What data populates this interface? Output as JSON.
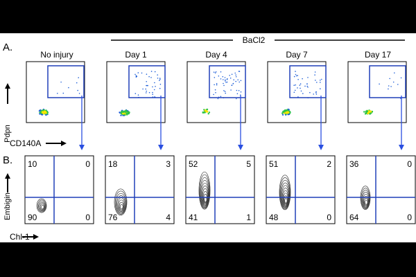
{
  "figure": {
    "panel_a_label": "A.",
    "panel_b_label": "B.",
    "treatment_label": "BaCl2",
    "conditions": [
      "No injury",
      "Day 1",
      "Day 4",
      "Day 7",
      "Day 17"
    ],
    "row_a": {
      "y_axis_label": "Pdpn",
      "x_axis_label": "CD140A"
    },
    "row_b": {
      "y_axis_label": "Embigin",
      "x_axis_label": "Chl-1",
      "quadrants": [
        {
          "condition": "No injury",
          "upper_left": "10",
          "upper_right": "0",
          "lower_left": "90",
          "lower_right": "0"
        },
        {
          "condition": "Day 1",
          "upper_left": "18",
          "upper_right": "3",
          "lower_left": "76",
          "lower_right": "4"
        },
        {
          "condition": "Day 4",
          "upper_left": "52",
          "upper_right": "5",
          "lower_left": "41",
          "lower_right": "1"
        },
        {
          "condition": "Day 7",
          "upper_left": "51",
          "upper_right": "2",
          "lower_left": "48",
          "lower_right": "0"
        },
        {
          "condition": "Day 17",
          "upper_left": "36",
          "upper_right": "0",
          "lower_left": "64",
          "lower_right": "0"
        }
      ]
    },
    "colors": {
      "gate": "#1f3fb8",
      "arrow": "#2a4fe0",
      "contour": "#3a3a3a",
      "density_high": "#ffe600",
      "density_mid": "#2fc44a",
      "density_low": "#1f5fd8"
    }
  }
}
